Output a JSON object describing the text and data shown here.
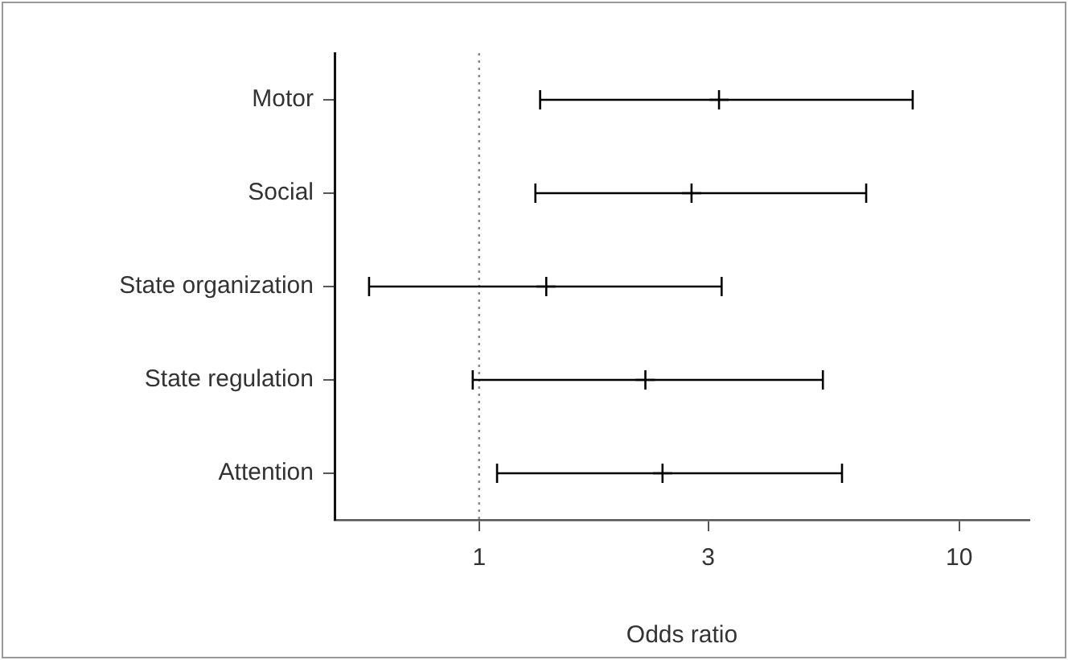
{
  "chart_data": {
    "type": "scatter",
    "orientation": "horizontal",
    "categories": [
      "Motor",
      "Social",
      "State organization",
      "State regulation",
      "Attention"
    ],
    "values": [
      3.16,
      2.77,
      1.38,
      2.22,
      2.41
    ],
    "errors": [
      [
        1.34,
        8.0
      ],
      [
        1.31,
        6.4
      ],
      [
        0.59,
        3.2
      ],
      [
        0.97,
        5.2
      ],
      [
        1.09,
        5.7
      ]
    ],
    "color": "#000000",
    "marker": "cross",
    "xlabel": "Odds ratio",
    "log": "x",
    "xlim": [
      0.5,
      14
    ],
    "xticks": [
      1,
      3,
      10
    ],
    "grid": false,
    "ref_lines": [
      {
        "axis": "x",
        "value": 1,
        "color": "#888888",
        "line_style": "dotted"
      }
    ]
  }
}
